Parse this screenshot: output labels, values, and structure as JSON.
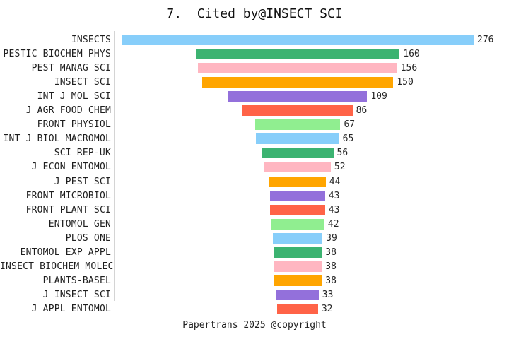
{
  "page": {
    "background": "#ffffff"
  },
  "chart_data": {
    "type": "bar",
    "variant": "horizontal-centered-funnel",
    "title": "7.  Cited by@INSECT SCI",
    "footer": "Papertrans 2025 @copyright",
    "categories": [
      "INSECTS",
      "PESTIC BIOCHEM PHYS",
      "PEST MANAG SCI",
      "INSECT SCI",
      "INT J MOL SCI",
      "J AGR FOOD CHEM",
      "FRONT PHYSIOL",
      "INT J BIOL MACROMOL",
      "SCI REP-UK",
      "J ECON ENTOMOL",
      "J PEST SCI",
      "FRONT MICROBIOL",
      "FRONT PLANT SCI",
      "ENTOMOL GEN",
      "PLOS ONE",
      "ENTOMOL EXP APPL",
      "INSECT BIOCHEM MOLEC",
      "PLANTS-BASEL",
      "J INSECT SCI",
      "J APPL ENTOMOL"
    ],
    "values": [
      276,
      160,
      156,
      150,
      109,
      86,
      67,
      65,
      56,
      52,
      44,
      43,
      43,
      42,
      39,
      38,
      38,
      38,
      33,
      32
    ],
    "bar_colors": [
      "#87CEFA",
      "#3CB371",
      "#FFB6C1",
      "#FFA500",
      "#9370DB",
      "#FF6347",
      "#90EE90",
      "#87CEFA",
      "#3CB371",
      "#FFB6C1",
      "#FFA500",
      "#9370DB",
      "#FF6347",
      "#90EE90",
      "#87CEFA",
      "#3CB371",
      "#FFB6C1",
      "#FFA500",
      "#9370DB",
      "#FF6347"
    ],
    "palette_cycle": [
      "#87CEFA",
      "#3CB371",
      "#FFB6C1",
      "#FFA500",
      "#9370DB",
      "#FF6347",
      "#90EE90"
    ],
    "xlim": [
      0,
      276
    ],
    "value_labels_shown": true,
    "grid": false,
    "legend": null,
    "axis_line_color": "#d4d4d4",
    "label_color": "#1f1f1f",
    "value_color": "#262626",
    "title_color": "#111111"
  }
}
